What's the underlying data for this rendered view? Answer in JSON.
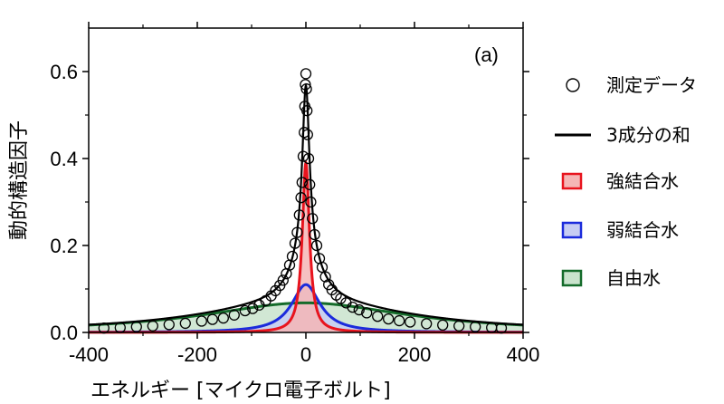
{
  "chart_data": {
    "type": "line",
    "panel_label": "(a)",
    "xlabel": "エネルギー [マイクロ電子ボルト]",
    "ylabel": "動的構造因子",
    "xlim": [
      -400,
      400
    ],
    "ylim": [
      0,
      0.7
    ],
    "x_ticks": [
      -400,
      -200,
      0,
      200,
      400
    ],
    "x_tick_labels": [
      "-400",
      "-200",
      "0",
      "200",
      "400"
    ],
    "y_ticks": [
      0.0,
      0.2,
      0.4,
      0.6
    ],
    "y_tick_labels": [
      "0.0",
      "0.2",
      "0.4",
      "0.6"
    ],
    "grid": false,
    "legend_position": "right",
    "components": [
      {
        "name": "強結合水",
        "amplitude": 0.39,
        "hwhm": 8,
        "line_color": "#e8141e",
        "fill_color": "#f5b6b6"
      },
      {
        "name": "弱結合水",
        "amplitude": 0.11,
        "hwhm": 32,
        "line_color": "#1b2bdc",
        "fill_color": "#c7cdf3"
      },
      {
        "name": "自由水",
        "amplitude": 0.068,
        "hwhm": 230,
        "line_color": "#146b2a",
        "fill_color": "#c9e3cc"
      }
    ],
    "series": [
      {
        "name": "測定データ",
        "marker": "open-circle",
        "points": [
          [
            -372,
            0.01
          ],
          [
            -342,
            0.011
          ],
          [
            -312,
            0.013
          ],
          [
            -282,
            0.015
          ],
          [
            -252,
            0.018
          ],
          [
            -222,
            0.021
          ],
          [
            -192,
            0.026
          ],
          [
            -172,
            0.03
          ],
          [
            -152,
            0.033
          ],
          [
            -132,
            0.04
          ],
          [
            -112,
            0.05
          ],
          [
            -98,
            0.055
          ],
          [
            -86,
            0.063
          ],
          [
            -74,
            0.073
          ],
          [
            -64,
            0.084
          ],
          [
            -56,
            0.096
          ],
          [
            -48,
            0.108
          ],
          [
            -42,
            0.12
          ],
          [
            -36,
            0.135
          ],
          [
            -30,
            0.155
          ],
          [
            -25,
            0.175
          ],
          [
            -20,
            0.205
          ],
          [
            -16,
            0.23
          ],
          [
            -12,
            0.27
          ],
          [
            -9,
            0.31
          ],
          [
            -7,
            0.345
          ],
          [
            -5,
            0.405
          ],
          [
            -3,
            0.46
          ],
          [
            -2,
            0.52
          ],
          [
            -1,
            0.57
          ],
          [
            0,
            0.595
          ],
          [
            1,
            0.56
          ],
          [
            2,
            0.51
          ],
          [
            3,
            0.455
          ],
          [
            5,
            0.4
          ],
          [
            7,
            0.34
          ],
          [
            9,
            0.3
          ],
          [
            12,
            0.262
          ],
          [
            16,
            0.225
          ],
          [
            20,
            0.2
          ],
          [
            25,
            0.17
          ],
          [
            30,
            0.15
          ],
          [
            36,
            0.128
          ],
          [
            42,
            0.11
          ],
          [
            48,
            0.098
          ],
          [
            56,
            0.086
          ],
          [
            64,
            0.078
          ],
          [
            74,
            0.068
          ],
          [
            86,
            0.058
          ],
          [
            98,
            0.052
          ],
          [
            112,
            0.045
          ],
          [
            132,
            0.037
          ],
          [
            152,
            0.031
          ],
          [
            172,
            0.027
          ],
          [
            192,
            0.024
          ],
          [
            222,
            0.02
          ],
          [
            252,
            0.017
          ],
          [
            282,
            0.015
          ],
          [
            312,
            0.013
          ],
          [
            342,
            0.011
          ],
          [
            360,
            0.01
          ]
        ]
      },
      {
        "name": "3成分の和",
        "line_color": "#000000"
      }
    ]
  }
}
